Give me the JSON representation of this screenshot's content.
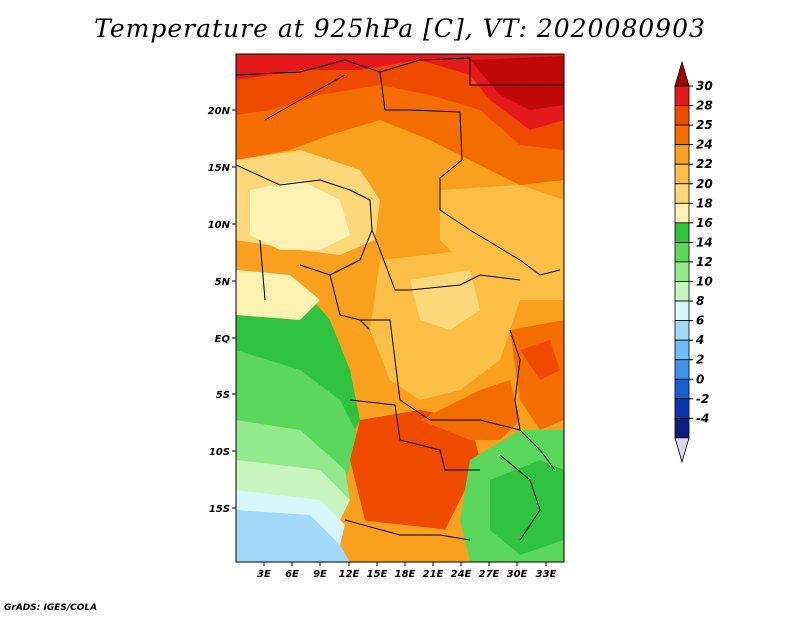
{
  "title": "Temperature at 925hPa [C], VT: 2020080903",
  "credit": "GrADS: IGES/COLA",
  "lat_ticks": [
    "20N",
    "15N",
    "10N",
    "5N",
    "EQ",
    "5S",
    "10S",
    "15S"
  ],
  "lon_ticks": [
    "3E",
    "6E",
    "9E",
    "12E",
    "15E",
    "18E",
    "21E",
    "24E",
    "27E",
    "30E",
    "33E"
  ],
  "colorbar": {
    "labels": [
      "30",
      "28",
      "25",
      "24",
      "22",
      "20",
      "18",
      "16",
      "14",
      "12",
      "10",
      "8",
      "6",
      "4",
      "2",
      "0",
      "-2",
      "-4"
    ],
    "colors": [
      "#a00000",
      "#e31a1c",
      "#ee4a00",
      "#f46d00",
      "#f9a11f",
      "#fbbf45",
      "#fcd87a",
      "#fdf2b4",
      "#2fc23f",
      "#5bd85b",
      "#93ea8d",
      "#c8f5c0",
      "#d7f5fb",
      "#a2d8f9",
      "#6ebcf3",
      "#3e95e8",
      "#1a5fd0",
      "#0b35b0",
      "#0a1e80",
      "#ddd9f4"
    ]
  },
  "map": {
    "lon_range": [
      0,
      35
    ],
    "lat_range": [
      -20,
      24
    ],
    "variable": "Temperature at 925hPa",
    "units": "C"
  }
}
